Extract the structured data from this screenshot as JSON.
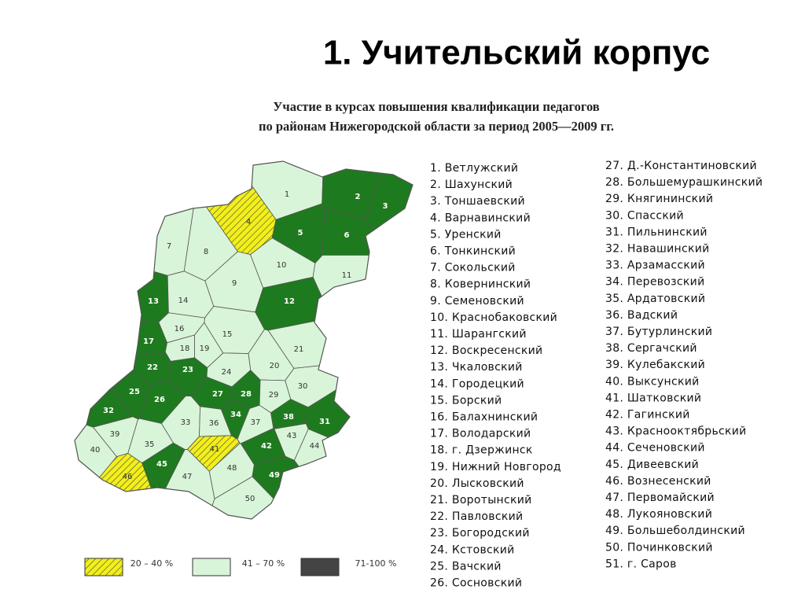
{
  "title": "1. Учительский корпус",
  "map": {
    "title_lines": [
      "Участие в курсах повышения квалификации педагогов",
      "по районам Нижегородской области за  период 2005—2009 гг."
    ],
    "regions": [
      {
        "label": "1",
        "color": "#d9f5d9"
      },
      {
        "label": "2",
        "color": "#1e7a1e"
      },
      {
        "label": "3",
        "color": "#1e7a1e"
      },
      {
        "label": "4",
        "color": "#f2ef1a"
      },
      {
        "label": "5",
        "color": "#1e7a1e"
      },
      {
        "label": "6",
        "color": "#1e7a1e"
      },
      {
        "label": "7",
        "color": "#d9f5d9"
      },
      {
        "label": "8",
        "color": "#d9f5d9"
      },
      {
        "label": "9",
        "color": "#d9f5d9"
      },
      {
        "label": "10",
        "color": "#d9f5d9"
      },
      {
        "label": "11",
        "color": "#d9f5d9"
      },
      {
        "label": "12",
        "color": "#1e7a1e"
      },
      {
        "label": "13",
        "color": "#1e7a1e"
      },
      {
        "label": "14",
        "color": "#d9f5d9"
      },
      {
        "label": "15",
        "color": "#d9f5d9"
      },
      {
        "label": "16",
        "color": "#d9f5d9"
      },
      {
        "label": "17",
        "color": "#1e7a1e"
      },
      {
        "label": "18",
        "color": "#d9f5d9"
      },
      {
        "label": "19",
        "color": "#d9f5d9"
      },
      {
        "label": "20",
        "color": "#d9f5d9"
      },
      {
        "label": "21",
        "color": "#d9f5d9"
      },
      {
        "label": "22",
        "color": "#1e7a1e"
      },
      {
        "label": "23",
        "color": "#1e7a1e"
      },
      {
        "label": "24",
        "color": "#d9f5d9"
      },
      {
        "label": "25",
        "color": "#1e7a1e"
      },
      {
        "label": "26",
        "color": "#1e7a1e"
      },
      {
        "label": "27",
        "color": "#1e7a1e"
      },
      {
        "label": "28",
        "color": "#1e7a1e"
      },
      {
        "label": "29",
        "color": "#d9f5d9"
      },
      {
        "label": "30",
        "color": "#d9f5d9"
      },
      {
        "label": "31",
        "color": "#1e7a1e"
      },
      {
        "label": "32",
        "color": "#1e7a1e"
      },
      {
        "label": "33",
        "color": "#d9f5d9"
      },
      {
        "label": "34",
        "color": "#1e7a1e"
      },
      {
        "label": "35",
        "color": "#d9f5d9"
      },
      {
        "label": "36",
        "color": "#d9f5d9"
      },
      {
        "label": "37",
        "color": "#d9f5d9"
      },
      {
        "label": "38",
        "color": "#1e7a1e"
      },
      {
        "label": "39",
        "color": "#d9f5d9"
      },
      {
        "label": "40",
        "color": "#d9f5d9"
      },
      {
        "label": "41",
        "color": "#f2ef1a"
      },
      {
        "label": "42",
        "color": "#1e7a1e"
      },
      {
        "label": "43",
        "color": "#d9f5d9"
      },
      {
        "label": "44",
        "color": "#d9f5d9"
      },
      {
        "label": "45",
        "color": "#1e7a1e"
      },
      {
        "label": "46",
        "color": "#f2ef1a"
      },
      {
        "label": "47",
        "color": "#d9f5d9"
      },
      {
        "label": "48",
        "color": "#d9f5d9"
      },
      {
        "label": "49",
        "color": "#1e7a1e"
      },
      {
        "label": "50",
        "color": "#d9f5d9"
      }
    ],
    "legend": [
      {
        "label": "20 – 40 %",
        "color": "#f2ef1a",
        "hatched": true
      },
      {
        "label": "41 – 70 %",
        "color": "#d9f5d9",
        "hatched": false
      },
      {
        "label": "71-100 %",
        "color": "#444444",
        "hatched": false
      }
    ]
  },
  "districts": [
    "1. Ветлужский",
    "2. Шахунский",
    "3. Тоншаевский",
    "4. Варнавинский",
    "5. Уренский",
    "6. Тонкинский",
    "7. Сокольский",
    "8. Ковернинский",
    "9. Семеновский",
    "10. Краснобаковский",
    "11. Шарангский",
    "12. Воскресенский",
    "13. Чкаловский",
    "14. Городецкий",
    "15. Борский",
    "16. Балахнинский",
    "17. Володарский",
    "18. г. Дзержинск",
    "19. Нижний Новгород",
    "20. Лысковский",
    "21. Воротынский",
    "22. Павловский",
    "23. Богородский",
    "24. Кстовский",
    "25. Вачский",
    "26. Сосновский",
    "27. Д.-Константиновский",
    "28. Большемурашкинский",
    "29. Княгининский",
    "30. Спасский",
    "31. Пильнинский",
    "32. Навашинский",
    "33. Арзамасский",
    "34. Перевозский",
    "35. Ардатовский",
    "36. Вадский",
    "37. Бутурлинский",
    "38. Сергачский",
    "39. Кулебакский",
    "40. Выксунский",
    "41. Шатковский",
    "42. Гагинский",
    "43. Краснооктябрьский",
    "44. Сеченовский",
    "45. Дивеевский",
    "46. Вознесенский",
    "47. Первомайский",
    "48. Лукояновский",
    "49. Большеболдинский",
    "50. Починковский",
    "51. г. Саров"
  ]
}
